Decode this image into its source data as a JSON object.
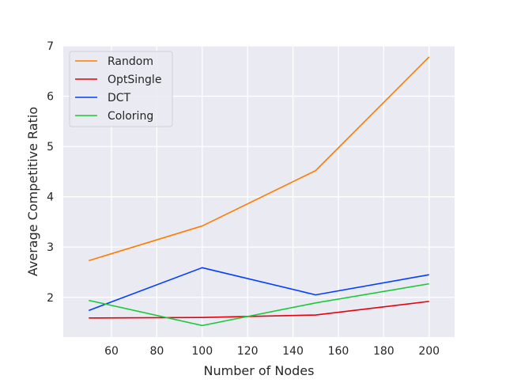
{
  "chart_data": {
    "type": "line",
    "title": "",
    "xlabel": "Number of Nodes",
    "ylabel": "Average Competitive Ratio",
    "x": [
      50,
      100,
      150,
      200
    ],
    "xlim": [
      38.75,
      211.25
    ],
    "ylim": [
      1.21,
      7.0
    ],
    "xticks": [
      60,
      80,
      100,
      120,
      140,
      160,
      180,
      200
    ],
    "yticks": [
      2,
      3,
      4,
      5,
      6,
      7
    ],
    "grid": true,
    "background": "#eaeaf2",
    "legend_position": "top-left",
    "series": [
      {
        "name": "Random",
        "color": "#ff7c00",
        "values": [
          2.73,
          3.42,
          4.52,
          6.78
        ]
      },
      {
        "name": "OptSingle",
        "color": "#e8000b",
        "values": [
          1.59,
          1.6,
          1.65,
          1.92
        ]
      },
      {
        "name": "DCT",
        "color": "#023eff",
        "values": [
          1.74,
          2.59,
          2.05,
          2.45
        ]
      },
      {
        "name": "Coloring",
        "color": "#1ac938",
        "values": [
          1.94,
          1.44,
          1.89,
          2.27
        ]
      }
    ]
  }
}
